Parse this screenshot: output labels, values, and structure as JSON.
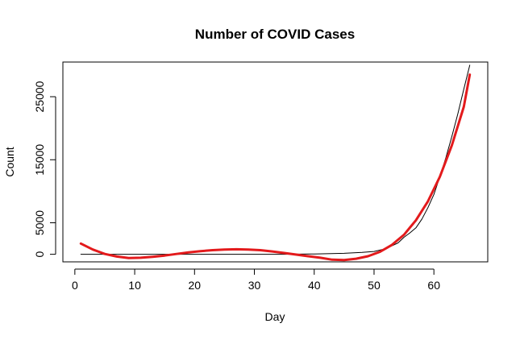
{
  "chart_data": {
    "type": "line",
    "title": "Number of COVID Cases",
    "xlabel": "Day",
    "ylabel": "Count",
    "xlim": [
      -2,
      69
    ],
    "ylim": [
      -1200,
      30500
    ],
    "x_ticks": [
      0,
      10,
      20,
      30,
      40,
      50,
      60
    ],
    "y_ticks": [
      0,
      5000,
      15000,
      25000
    ],
    "grid": false,
    "legend": "none",
    "series": [
      {
        "color": "#000000",
        "line_width": 1,
        "x": [
          1,
          5,
          10,
          15,
          20,
          25,
          30,
          35,
          40,
          45,
          48,
          50,
          52,
          54,
          55,
          56,
          57,
          58,
          59,
          60,
          61,
          62,
          63,
          64,
          65,
          66
        ],
        "values": [
          0,
          0,
          0,
          0,
          0,
          0,
          0,
          0,
          50,
          150,
          300,
          450,
          900,
          1800,
          2700,
          3400,
          4200,
          5600,
          7400,
          9500,
          12300,
          15300,
          18700,
          22300,
          26200,
          30000
        ]
      },
      {
        "color": "#e31a1c",
        "line_width": 3,
        "x": [
          1,
          3,
          5,
          7,
          9,
          11,
          13,
          15,
          17,
          19,
          21,
          23,
          25,
          27,
          29,
          31,
          33,
          35,
          37,
          39,
          41,
          43,
          45,
          47,
          49,
          51,
          53,
          55,
          57,
          59,
          61,
          63,
          65,
          66
        ],
        "values": [
          1700,
          750,
          50,
          -350,
          -600,
          -550,
          -400,
          -200,
          50,
          300,
          500,
          650,
          750,
          800,
          750,
          650,
          450,
          200,
          -50,
          -300,
          -550,
          -850,
          -900,
          -700,
          -300,
          400,
          1500,
          3100,
          5400,
          8400,
          12300,
          17300,
          23400,
          28500
        ]
      }
    ]
  }
}
